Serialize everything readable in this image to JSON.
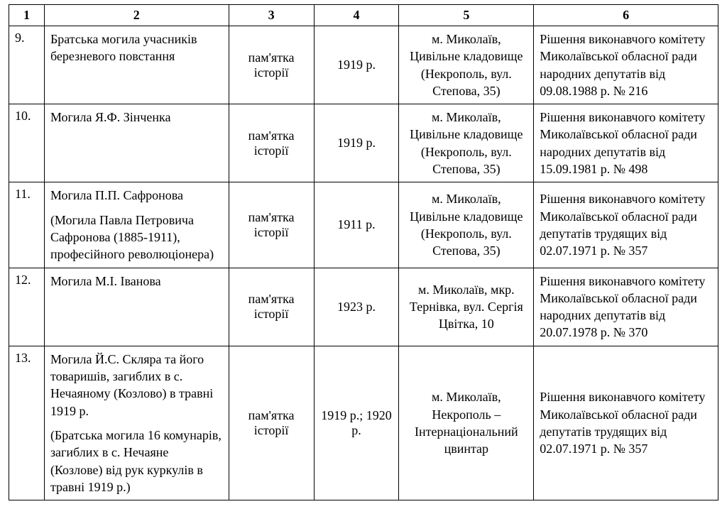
{
  "table": {
    "headers": [
      "1",
      "2",
      "3",
      "4",
      "5",
      "6"
    ],
    "col_widths_pct": [
      5,
      26,
      12,
      12,
      19,
      26
    ],
    "font_family": "Times New Roman",
    "font_size_pt": 14,
    "border_color": "#000000",
    "background_color": "#ffffff",
    "text_color": "#000000",
    "rows": [
      {
        "num": "9.",
        "name_l1": "Братська могила учасників березневого повстання",
        "name_l2": "",
        "type": "пам'ятка історії",
        "date": "1919 р.",
        "location": "м. Миколаїв, Цивільне кладовище (Некрополь, вул. Степова, 35)",
        "decision": "Рішення виконавчого комітету Миколаївської обласної ради народних депутатів від 09.08.1988 р. № 216"
      },
      {
        "num": "10.",
        "name_l1": "Могила Я.Ф. Зінченка",
        "name_l2": "",
        "type": "пам'ятка історії",
        "date": "1919 р.",
        "location": "м. Миколаїв, Цивільне кладовище (Некрополь, вул. Степова, 35)",
        "decision": "Рішення виконавчого комітету Миколаївської обласної ради народних депутатів від 15.09.1981 р. № 498"
      },
      {
        "num": "11.",
        "name_l1": "Могила П.П. Сафронова",
        "name_l2": "(Могила Павла Петровича Сафронова (1885-1911), професійного революціонера)",
        "type": "пам'ятка історії",
        "date": "1911 р.",
        "location": "м. Миколаїв, Цивільне кладовище (Некрополь, вул. Степова, 35)",
        "decision": "Рішення виконавчого комітету Миколаївської обласної ради депутатів трудящих від 02.07.1971 р. № 357"
      },
      {
        "num": "12.",
        "name_l1": "Могила М.І. Іванова",
        "name_l2": "",
        "type": "пам'ятка історії",
        "date": "1923 р.",
        "location": "м. Миколаїв, мкр. Тернівка, вул. Сергія Цвітка, 10",
        "decision": "Рішення виконавчого комітету Миколаївської обласної ради народних депутатів від 20.07.1978 р. № 370"
      },
      {
        "num": "13.",
        "name_l1": "Могила Й.С. Скляра та його товаришів, загиблих в с. Нечаяному (Козлово) в травні 1919 р.",
        "name_l2": "(Братська могила 16 комунарів, загиблих в с. Нечаяне (Козлове) від рук куркулів в травні 1919 р.)",
        "type": "пам'ятка історії",
        "date": "1919 р.; 1920 р.",
        "location": "м. Миколаїв, Некрополь – Інтернаціональний цвинтар",
        "decision": "Рішення виконавчого комітету Миколаївської обласної ради депутатів трудящих від 02.07.1971 р. № 357"
      }
    ]
  }
}
